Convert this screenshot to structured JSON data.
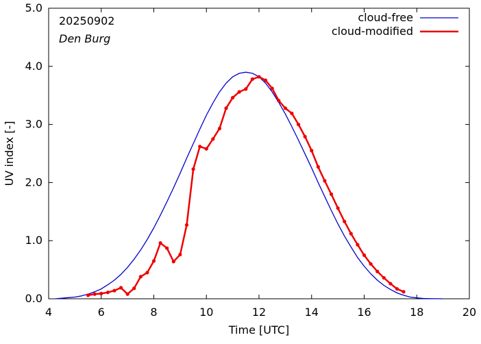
{
  "chart_data": {
    "type": "line",
    "date": "20250902",
    "location": "Den Burg",
    "xlabel": "Time  [UTC]",
    "ylabel": "UV index  [-]",
    "xlim": [
      4,
      20
    ],
    "ylim": [
      0,
      5
    ],
    "xticks": [
      "4",
      "6",
      "8",
      "10",
      "12",
      "14",
      "16",
      "18",
      "20"
    ],
    "yticks": [
      "0.0",
      "1.0",
      "2.0",
      "3.0",
      "4.0",
      "5.0"
    ],
    "grid": false,
    "legend_position": "top-right",
    "series": [
      {
        "name": "cloud-free",
        "color": "#0000cc",
        "markers": false,
        "x": [
          4.25,
          4.5,
          4.75,
          5.0,
          5.25,
          5.5,
          5.75,
          6.0,
          6.25,
          6.5,
          6.75,
          7.0,
          7.25,
          7.5,
          7.75,
          8.0,
          8.25,
          8.5,
          8.75,
          9.0,
          9.25,
          9.5,
          9.75,
          10.0,
          10.25,
          10.5,
          10.75,
          11.0,
          11.25,
          11.5,
          11.75,
          12.0,
          12.25,
          12.5,
          12.75,
          13.0,
          13.25,
          13.5,
          13.75,
          14.0,
          14.25,
          14.5,
          14.75,
          15.0,
          15.25,
          15.5,
          15.75,
          16.0,
          16.25,
          16.5,
          16.75,
          17.0,
          17.25,
          17.5,
          17.75,
          18.0,
          18.25,
          18.5,
          18.75,
          19.0
        ],
        "values": [
          0.0,
          0.01,
          0.02,
          0.03,
          0.05,
          0.08,
          0.12,
          0.17,
          0.24,
          0.32,
          0.42,
          0.54,
          0.68,
          0.84,
          1.02,
          1.22,
          1.44,
          1.67,
          1.91,
          2.16,
          2.42,
          2.67,
          2.92,
          3.16,
          3.37,
          3.56,
          3.71,
          3.82,
          3.88,
          3.9,
          3.88,
          3.82,
          3.71,
          3.56,
          3.38,
          3.18,
          2.96,
          2.73,
          2.49,
          2.25,
          2.0,
          1.76,
          1.52,
          1.29,
          1.08,
          0.89,
          0.71,
          0.56,
          0.43,
          0.32,
          0.23,
          0.16,
          0.1,
          0.06,
          0.03,
          0.015,
          0.006,
          0.002,
          0.001,
          0.0
        ]
      },
      {
        "name": "cloud-modified",
        "color": "#ee0000",
        "markers": true,
        "x": [
          5.5,
          5.75,
          6.0,
          6.25,
          6.5,
          6.75,
          7.0,
          7.25,
          7.5,
          7.75,
          8.0,
          8.25,
          8.5,
          8.75,
          9.0,
          9.25,
          9.5,
          9.75,
          10.0,
          10.25,
          10.5,
          10.75,
          11.0,
          11.25,
          11.5,
          11.75,
          12.0,
          12.25,
          12.5,
          12.75,
          13.0,
          13.25,
          13.5,
          13.75,
          14.0,
          14.25,
          14.5,
          14.75,
          15.0,
          15.25,
          15.5,
          15.75,
          16.0,
          16.25,
          16.5,
          16.75,
          17.0,
          17.25,
          17.5
        ],
        "values": [
          0.06,
          0.08,
          0.09,
          0.11,
          0.14,
          0.19,
          0.08,
          0.18,
          0.38,
          0.45,
          0.65,
          0.96,
          0.87,
          0.64,
          0.76,
          1.27,
          2.23,
          2.62,
          2.58,
          2.75,
          2.93,
          3.28,
          3.46,
          3.56,
          3.61,
          3.78,
          3.82,
          3.76,
          3.62,
          3.41,
          3.28,
          3.19,
          3.0,
          2.79,
          2.55,
          2.27,
          2.03,
          1.8,
          1.56,
          1.33,
          1.12,
          0.93,
          0.75,
          0.6,
          0.47,
          0.36,
          0.26,
          0.17,
          0.12
        ]
      }
    ]
  }
}
